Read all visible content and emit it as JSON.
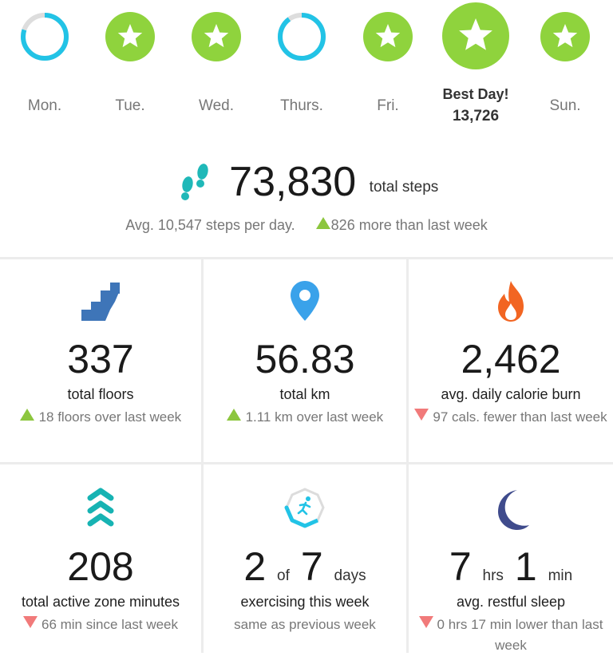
{
  "week": {
    "days": [
      {
        "label": "Mon.",
        "status": "in-progress",
        "progress": 0.8
      },
      {
        "label": "Tue.",
        "status": "goal-met"
      },
      {
        "label": "Wed.",
        "status": "goal-met"
      },
      {
        "label": "Thurs.",
        "status": "in-progress",
        "progress": 0.9
      },
      {
        "label": "Fri.",
        "status": "goal-met"
      },
      {
        "label": "Best Day!",
        "value": "13,726",
        "status": "best-day"
      },
      {
        "label": "Sun.",
        "status": "goal-met"
      }
    ]
  },
  "steps": {
    "total": "73,830",
    "unit": "total steps",
    "avg": "Avg. 10,547 steps per day.",
    "change": "826 more than last week",
    "icon": "footprints-icon"
  },
  "stats": [
    {
      "value": "337",
      "label": "total floors",
      "change": "18 floors over last week",
      "trend": "up",
      "icon": "stairs-icon"
    },
    {
      "value": "56.83",
      "label": "total km",
      "change": "1.11 km over last week",
      "trend": "up",
      "icon": "location-pin-icon"
    },
    {
      "value": "2,462",
      "label": "avg. daily calorie burn",
      "change": "97 cals. fewer than last week",
      "trend": "down",
      "icon": "flame-icon"
    },
    {
      "value": "208",
      "label": "total active zone minutes",
      "change": "66 min since last week",
      "trend": "down",
      "icon": "active-zone-chevrons-icon"
    },
    {
      "v1": "2",
      "w1": "of",
      "v2": "7",
      "w2": "days",
      "label": "exercising this week",
      "change": "same as previous week",
      "trend": "none",
      "icon": "exercise-runner-icon"
    },
    {
      "v1": "7",
      "w1": "hrs",
      "v2": "1",
      "w2": "min",
      "label": "avg. restful sleep",
      "change": "0 hrs 17 min lower than last week",
      "trend": "down",
      "icon": "moon-icon"
    }
  ],
  "colors": {
    "goal_green": "#8fd33d",
    "ring_blue": "#22c3e6",
    "ring_track": "#dddddd",
    "up_green": "#8cc63e",
    "down_red": "#f17a7a",
    "stairs_blue": "#3e75b8",
    "pin_blue": "#3aa2ea",
    "flame_orange": "#f26522",
    "zone_teal": "#17b3b3",
    "moon_navy": "#3f4b8c"
  }
}
